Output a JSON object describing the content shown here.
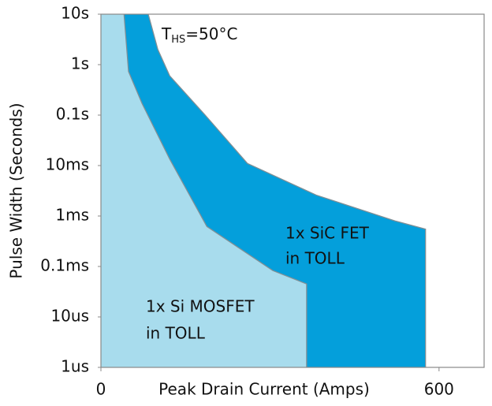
{
  "chart_data": {
    "type": "area",
    "y_label": "Pulse Width (Seconds)",
    "x_label": "Peak Drain Current (Amps)",
    "ylog": true,
    "xlim": [
      0,
      680
    ],
    "ylim": [
      1e-06,
      10
    ],
    "xticks": [
      0,
      600
    ],
    "yticks": [
      {
        "value": 10,
        "label": "10s"
      },
      {
        "value": 1,
        "label": "1s"
      },
      {
        "value": 0.1,
        "label": "0.1s"
      },
      {
        "value": 0.01,
        "label": "10ms"
      },
      {
        "value": 0.001,
        "label": "1ms"
      },
      {
        "value": 0.0001,
        "label": "0.1ms"
      },
      {
        "value": 1e-05,
        "label": "10us"
      },
      {
        "value": 1e-06,
        "label": "1us"
      }
    ],
    "series": [
      {
        "color": "#049fdb",
        "x": [
          84,
          101,
          122,
          185,
          260,
          382,
          522,
          576,
          576
        ],
        "values": [
          10,
          2.0,
          0.6,
          0.1,
          0.011,
          0.0026,
          0.0008,
          0.00055,
          1e-06
        ]
      },
      {
        "color": "#a8dced",
        "x": [
          41,
          49,
          73,
          122,
          188,
          305,
          365,
          365
        ],
        "values": [
          10,
          0.73,
          0.17,
          0.0135,
          0.00062,
          8.3e-05,
          4.5e-05,
          1e-06
        ]
      }
    ],
    "annotations": {
      "condition": [
        "T",
        "HS",
        "=50°C"
      ],
      "sic": [
        "1x SiC FET",
        "in TOLL"
      ],
      "si": [
        "1x Si MOSFET",
        "in TOLL"
      ]
    }
  }
}
